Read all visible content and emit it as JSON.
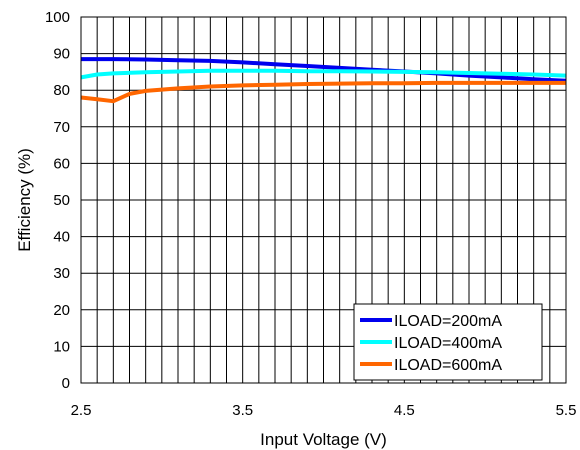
{
  "chart_data": {
    "type": "line",
    "title": "",
    "xlabel": "Input Voltage (V)",
    "ylabel": "Efficiency (%)",
    "xlim": [
      2.5,
      5.5
    ],
    "ylim": [
      0,
      100
    ],
    "x_ticks": [
      2.5,
      3.5,
      4.5,
      5.5
    ],
    "x_tick_labels": [
      "2.5",
      "3.5",
      "4.5",
      "5.5"
    ],
    "y_ticks": [
      0,
      10,
      20,
      30,
      40,
      50,
      60,
      70,
      80,
      90,
      100
    ],
    "grid": true,
    "legend_position": "bottom-right",
    "series": [
      {
        "name": "ILOAD=200mA",
        "color": "#0000ee",
        "x": [
          2.5,
          2.7,
          2.9,
          3.1,
          3.3,
          3.5,
          3.7,
          3.9,
          4.1,
          4.3,
          4.5,
          4.7,
          4.9,
          5.1,
          5.3,
          5.5
        ],
        "y": [
          88.5,
          88.5,
          88.4,
          88.2,
          88.0,
          87.6,
          87.1,
          86.6,
          86.1,
          85.6,
          85.1,
          84.6,
          84.0,
          83.5,
          83.0,
          82.6
        ]
      },
      {
        "name": "ILOAD=400mA",
        "color": "#00ffff",
        "x": [
          2.5,
          2.6,
          2.7,
          2.9,
          3.1,
          3.3,
          3.5,
          3.7,
          3.9,
          4.1,
          4.3,
          4.5,
          4.7,
          4.9,
          5.1,
          5.3,
          5.5
        ],
        "y": [
          83.5,
          84.3,
          84.6,
          84.9,
          85.1,
          85.3,
          85.3,
          85.3,
          85.2,
          85.2,
          85.1,
          85.0,
          84.9,
          84.7,
          84.5,
          84.3,
          84.0
        ]
      },
      {
        "name": "ILOAD=600mA",
        "color": "#ff6600",
        "x": [
          2.5,
          2.6,
          2.7,
          2.8,
          2.9,
          3.1,
          3.3,
          3.5,
          3.7,
          3.9,
          4.1,
          4.3,
          4.5,
          4.7,
          4.9,
          5.1,
          5.3,
          5.5
        ],
        "y": [
          78.0,
          77.5,
          77.0,
          79.0,
          79.8,
          80.5,
          81.0,
          81.3,
          81.5,
          81.7,
          81.8,
          81.9,
          81.9,
          82.0,
          82.0,
          82.0,
          82.0,
          82.0
        ]
      }
    ]
  }
}
